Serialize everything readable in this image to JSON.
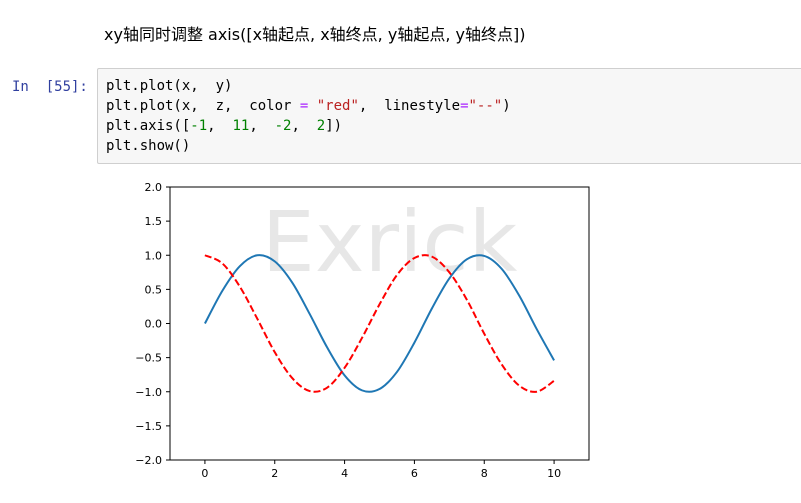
{
  "markdown": {
    "heading": "xy轴同时调整 axis([x轴起点, x轴终点, y轴起点, y轴终点])"
  },
  "cell": {
    "prompt": "In  [55]:",
    "lines": [
      [
        {
          "t": "plt.plot(x,  y)",
          "c": ""
        }
      ],
      [
        {
          "t": "plt.plot(x,  z,  color ",
          "c": ""
        },
        {
          "t": "=",
          "c": "op"
        },
        {
          "t": " ",
          "c": ""
        },
        {
          "t": "\"red\"",
          "c": "str"
        },
        {
          "t": ",  linestyle",
          "c": ""
        },
        {
          "t": "=",
          "c": "op"
        },
        {
          "t": "\"--\"",
          "c": "str"
        },
        {
          "t": ")",
          "c": ""
        }
      ],
      [
        {
          "t": "plt.axis([",
          "c": ""
        },
        {
          "t": "-1",
          "c": "num"
        },
        {
          "t": ",  ",
          "c": ""
        },
        {
          "t": "11",
          "c": "num"
        },
        {
          "t": ",  ",
          "c": ""
        },
        {
          "t": "-2",
          "c": "num"
        },
        {
          "t": ",  ",
          "c": ""
        },
        {
          "t": "2",
          "c": "num"
        },
        {
          "t": "])",
          "c": ""
        }
      ],
      [
        {
          "t": "plt.show()",
          "c": ""
        }
      ]
    ]
  },
  "chart_data": {
    "type": "line",
    "title": "",
    "xlabel": "",
    "ylabel": "",
    "xlim": [
      -1,
      11
    ],
    "ylim": [
      -2,
      2
    ],
    "xticks": [
      0,
      2,
      4,
      6,
      8,
      10
    ],
    "xtick_labels": [
      "0",
      "2",
      "4",
      "6",
      "8",
      "10"
    ],
    "yticks": [
      2.0,
      1.5,
      1.0,
      0.5,
      0.0,
      -0.5,
      -1.0,
      -1.5,
      -2.0
    ],
    "ytick_labels": [
      "2.0",
      "1.5",
      "1.0",
      "0.5",
      "0.0",
      "−0.5",
      "−1.0",
      "−1.5",
      "−2.0"
    ],
    "grid": false,
    "watermark": "Exrick",
    "series": [
      {
        "style": "solid",
        "color": "#1f77b4",
        "x": [
          0,
          0.5,
          1,
          1.5,
          2,
          2.5,
          3,
          3.5,
          4,
          4.5,
          5,
          5.5,
          6,
          6.5,
          7,
          7.5,
          8,
          8.5,
          9,
          9.5,
          10
        ],
        "y": [
          0,
          0.48,
          0.84,
          1.0,
          0.91,
          0.6,
          0.14,
          -0.35,
          -0.76,
          -0.98,
          -0.96,
          -0.71,
          -0.28,
          0.22,
          0.66,
          0.94,
          0.99,
          0.8,
          0.41,
          -0.08,
          -0.54
        ]
      },
      {
        "style": "dashed",
        "color": "#ff0000",
        "x": [
          0,
          0.5,
          1,
          1.5,
          2,
          2.5,
          3,
          3.5,
          4,
          4.5,
          5,
          5.5,
          6,
          6.5,
          7,
          7.5,
          8,
          8.5,
          9,
          9.5,
          10
        ],
        "y": [
          1.0,
          0.88,
          0.54,
          0.07,
          -0.42,
          -0.8,
          -0.99,
          -0.94,
          -0.65,
          -0.21,
          0.28,
          0.71,
          0.96,
          0.98,
          0.75,
          0.35,
          -0.15,
          -0.6,
          -0.91,
          -1.0,
          -0.84
        ]
      }
    ]
  }
}
